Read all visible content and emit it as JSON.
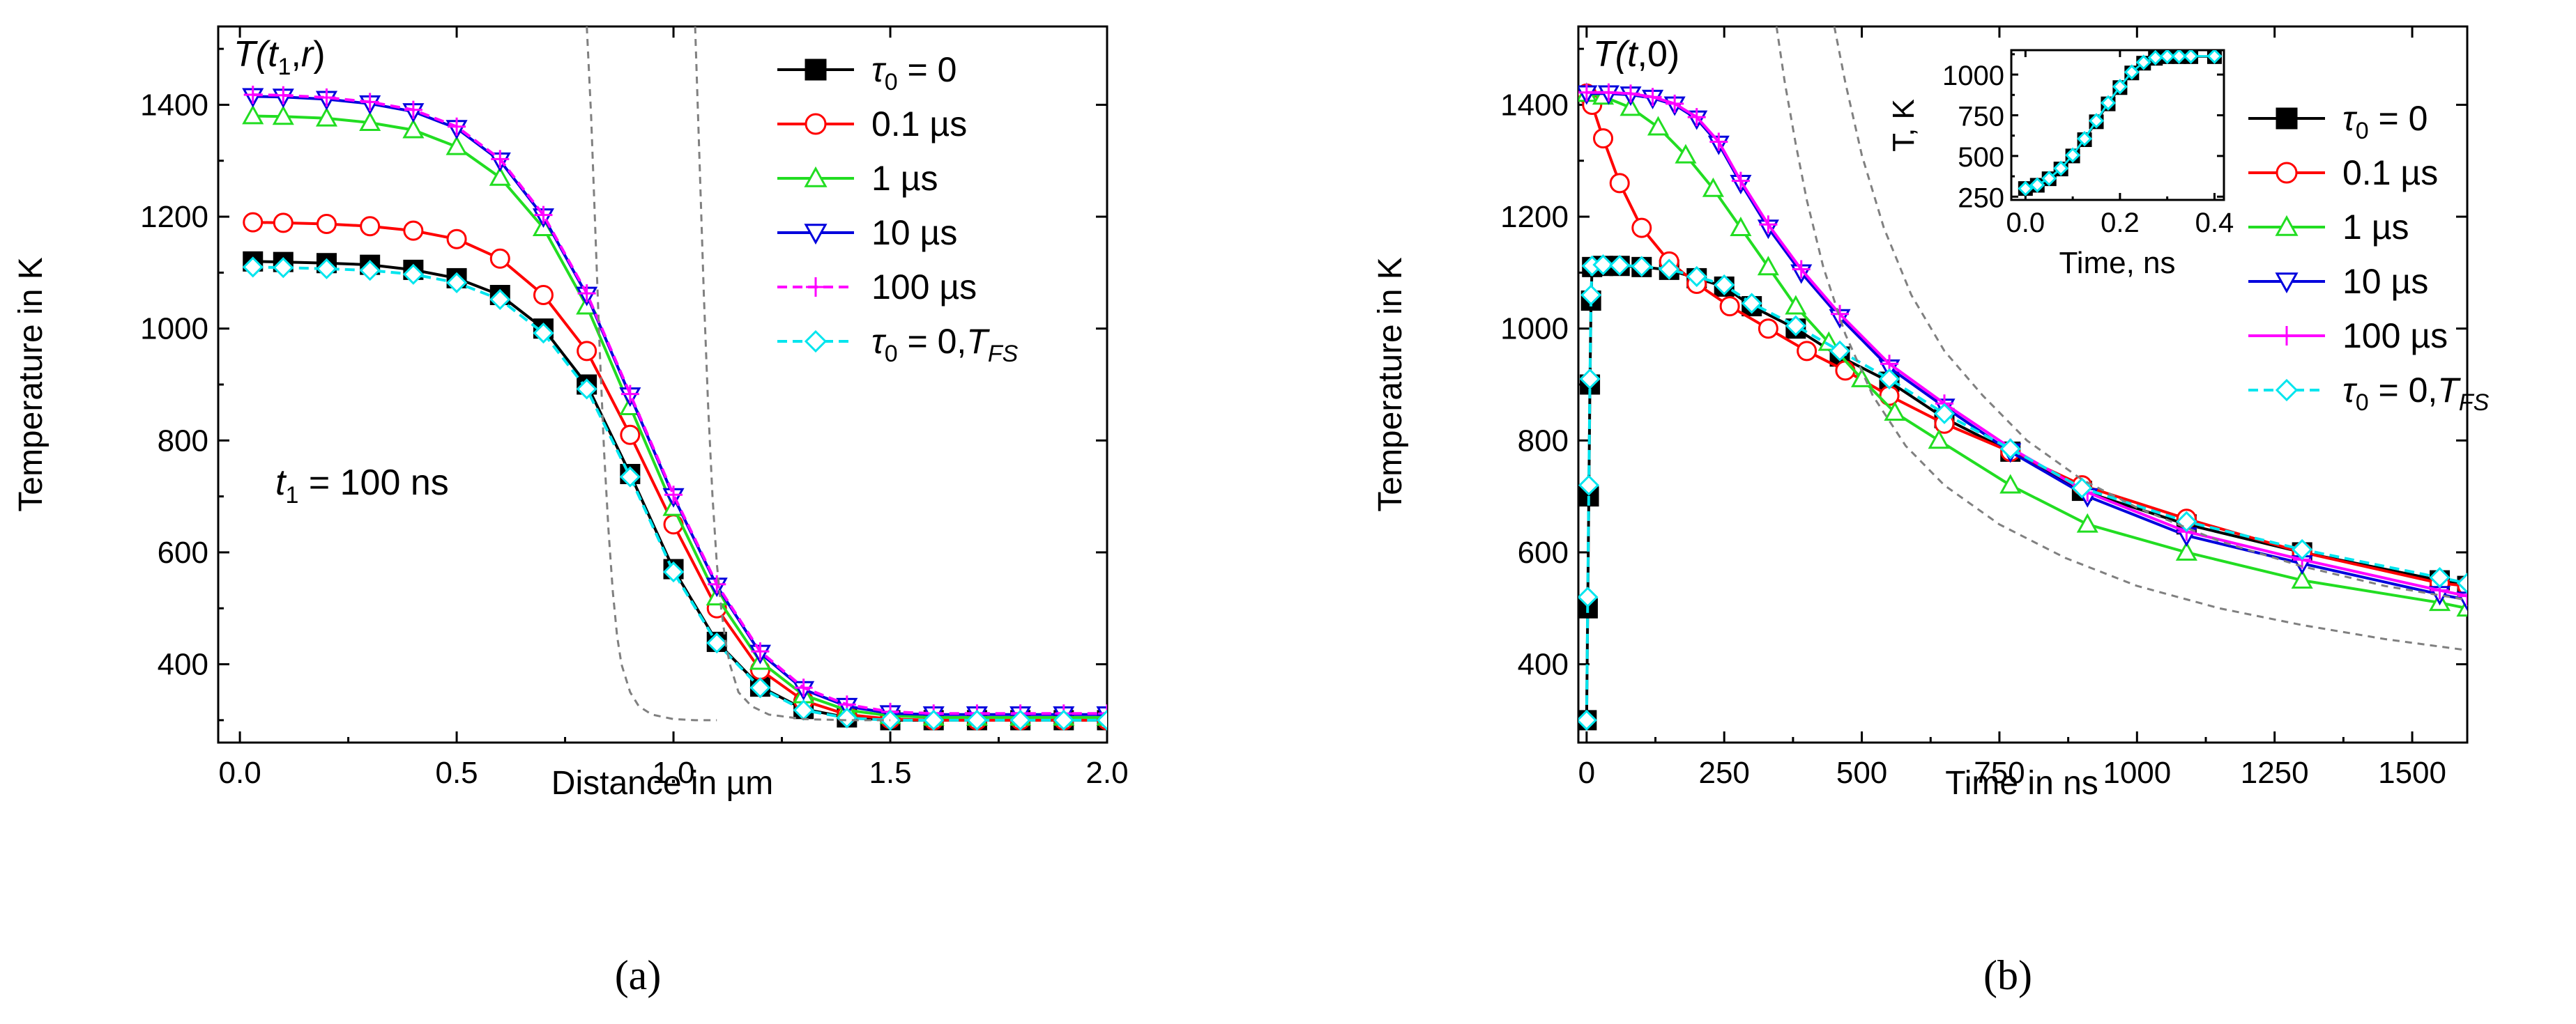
{
  "chart_data": [
    {
      "id": "a",
      "type": "line",
      "caption": "(a)",
      "annotation_title": "T(t1,r)",
      "annotation_t1": "t1 = 100 ns",
      "xlabel": "Distance in µm",
      "ylabel": "Temperature in K",
      "xlim": [
        -0.05,
        2.0
      ],
      "ylim": [
        260,
        1540
      ],
      "xticks": [
        "0.0",
        "0.5",
        "1.0",
        "1.5",
        "2.0"
      ],
      "yticks": [
        "400",
        "600",
        "800",
        "1000",
        "1200",
        "1400"
      ],
      "series": [
        {
          "name": "τ0 = 0",
          "color": "#000000",
          "marker": "square",
          "dash": "",
          "x": [
            0.03,
            0.1,
            0.2,
            0.3,
            0.4,
            0.5,
            0.6,
            0.7,
            0.8,
            0.9,
            1.0,
            1.1,
            1.2,
            1.3,
            1.4,
            1.5,
            1.6,
            1.7,
            1.8,
            1.9,
            2.0
          ],
          "y": [
            1120,
            1119,
            1117,
            1114,
            1105,
            1090,
            1060,
            1000,
            900,
            740,
            570,
            440,
            360,
            320,
            305,
            300,
            300,
            300,
            300,
            300,
            300
          ]
        },
        {
          "name": "0.1 µs",
          "color": "#ff0000",
          "marker": "circle",
          "dash": "",
          "x": [
            0.03,
            0.1,
            0.2,
            0.3,
            0.4,
            0.5,
            0.6,
            0.7,
            0.8,
            0.9,
            1.0,
            1.1,
            1.2,
            1.3,
            1.4,
            1.5,
            1.6,
            1.7,
            1.8,
            1.9,
            2.0
          ],
          "y": [
            1190,
            1189,
            1187,
            1183,
            1175,
            1160,
            1125,
            1060,
            960,
            810,
            650,
            500,
            390,
            335,
            310,
            302,
            300,
            300,
            300,
            300,
            300
          ]
        },
        {
          "name": "1 µs",
          "color": "#22dd22",
          "marker": "triangle-up",
          "dash": "",
          "x": [
            0.03,
            0.1,
            0.2,
            0.3,
            0.4,
            0.5,
            0.6,
            0.7,
            0.8,
            0.9,
            1.0,
            1.1,
            1.2,
            1.3,
            1.4,
            1.5,
            1.6,
            1.7,
            1.8,
            1.9,
            2.0
          ],
          "y": [
            1380,
            1379,
            1376,
            1368,
            1355,
            1325,
            1270,
            1180,
            1040,
            860,
            680,
            520,
            405,
            345,
            318,
            308,
            305,
            305,
            305,
            305,
            305
          ]
        },
        {
          "name": "10 µs",
          "color": "#0000dd",
          "marker": "triangle-down",
          "dash": "",
          "x": [
            0.03,
            0.1,
            0.2,
            0.3,
            0.4,
            0.5,
            0.6,
            0.7,
            0.8,
            0.9,
            1.0,
            1.1,
            1.2,
            1.3,
            1.4,
            1.5,
            1.6,
            1.7,
            1.8,
            1.9,
            2.0
          ],
          "y": [
            1415,
            1414,
            1410,
            1402,
            1388,
            1358,
            1300,
            1200,
            1060,
            880,
            700,
            540,
            420,
            355,
            325,
            312,
            310,
            310,
            310,
            310,
            310
          ]
        },
        {
          "name": "100 µs",
          "color": "#ff00ff",
          "marker": "plus",
          "dash": "14,8",
          "x": [
            0.03,
            0.1,
            0.2,
            0.3,
            0.4,
            0.5,
            0.6,
            0.7,
            0.8,
            0.9,
            1.0,
            1.1,
            1.2,
            1.3,
            1.4,
            1.5,
            1.6,
            1.7,
            1.8,
            1.9,
            2.0
          ],
          "y": [
            1418,
            1417,
            1413,
            1405,
            1391,
            1361,
            1303,
            1203,
            1063,
            883,
            703,
            543,
            423,
            358,
            328,
            315,
            312,
            312,
            312,
            312,
            312
          ]
        },
        {
          "name": "τ0 = 0,TFS",
          "color": "#00e5ee",
          "marker": "diamond",
          "dash": "14,8",
          "x": [
            0.03,
            0.1,
            0.2,
            0.3,
            0.4,
            0.5,
            0.6,
            0.7,
            0.8,
            0.9,
            1.0,
            1.1,
            1.2,
            1.3,
            1.4,
            1.5,
            1.6,
            1.7,
            1.8,
            1.9,
            2.0
          ],
          "y": [
            1110,
            1109,
            1107,
            1104,
            1097,
            1082,
            1052,
            992,
            892,
            735,
            565,
            438,
            358,
            318,
            304,
            300,
            300,
            300,
            300,
            300,
            300
          ]
        },
        {
          "name": "",
          "color": "#808080",
          "marker": "none",
          "dash": "10,8",
          "x": [
            0.8,
            0.81,
            0.82,
            0.83,
            0.84,
            0.85,
            0.86,
            0.87,
            0.88,
            0.9,
            0.92,
            0.95,
            1.0,
            1.05,
            1.1
          ],
          "y": [
            1540,
            1380,
            1170,
            960,
            780,
            640,
            530,
            450,
            400,
            350,
            325,
            310,
            302,
            300,
            300
          ]
        },
        {
          "name": "",
          "color": "#808080",
          "marker": "none",
          "dash": "10,8",
          "x": [
            1.05,
            1.06,
            1.07,
            1.08,
            1.09,
            1.1,
            1.11,
            1.12,
            1.13,
            1.15,
            1.18,
            1.22,
            1.3,
            1.4,
            1.5
          ],
          "y": [
            1540,
            1300,
            1060,
            860,
            700,
            580,
            500,
            440,
            400,
            350,
            325,
            310,
            302,
            300,
            300
          ]
        }
      ],
      "legend": [
        {
          "label": "τ",
          "sub": "0",
          "rest": " = 0"
        },
        {
          "label": "0.1 µs"
        },
        {
          "label": "1 µs"
        },
        {
          "label": "10 µs"
        },
        {
          "label": "100 µs"
        },
        {
          "label": "τ",
          "sub": "0",
          "rest": " = 0,",
          "italic2": "T",
          "sub2": "FS"
        }
      ]
    },
    {
      "id": "b",
      "type": "line",
      "caption": "(b)",
      "annotation_title": "T(t,0)",
      "xlabel": "Time in ns",
      "ylabel": "Temperature in K",
      "xlim": [
        -15,
        1600
      ],
      "ylim": [
        260,
        1540
      ],
      "xticks": [
        "0",
        "250",
        "500",
        "750",
        "1000",
        "1250",
        "1500"
      ],
      "yticks": [
        "400",
        "600",
        "800",
        "1000",
        "1200",
        "1400"
      ],
      "series": [
        {
          "name": "τ0 = 0",
          "color": "#000000",
          "marker": "square",
          "dash": "",
          "x": [
            0,
            2,
            4,
            6,
            8,
            10,
            30,
            60,
            100,
            150,
            200,
            250,
            300,
            380,
            460,
            550,
            650,
            770,
            900,
            1090,
            1300,
            1550,
            1600
          ],
          "y": [
            300,
            500,
            700,
            900,
            1050,
            1110,
            1112,
            1112,
            1110,
            1105,
            1090,
            1075,
            1040,
            1000,
            950,
            905,
            840,
            780,
            710,
            650,
            600,
            550,
            540
          ]
        },
        {
          "name": "0.1 µs",
          "color": "#ff0000",
          "marker": "circle",
          "dash": "",
          "x": [
            0,
            10,
            30,
            60,
            100,
            150,
            200,
            260,
            330,
            400,
            470,
            550,
            650,
            770,
            900,
            1090,
            1300,
            1550,
            1600
          ],
          "y": [
            1420,
            1400,
            1340,
            1260,
            1180,
            1120,
            1080,
            1040,
            1000,
            960,
            925,
            880,
            830,
            780,
            720,
            660,
            600,
            545,
            540
          ]
        },
        {
          "name": "1 µs",
          "color": "#22dd22",
          "marker": "triangle-up",
          "dash": "",
          "x": [
            0,
            30,
            80,
            130,
            180,
            230,
            280,
            330,
            380,
            440,
            500,
            560,
            640,
            770,
            910,
            1090,
            1300,
            1550,
            1600
          ],
          "y": [
            1420,
            1415,
            1395,
            1360,
            1310,
            1250,
            1180,
            1110,
            1040,
            975,
            910,
            850,
            800,
            720,
            650,
            600,
            550,
            510,
            500
          ]
        },
        {
          "name": "10 µs",
          "color": "#0000dd",
          "marker": "triangle-down",
          "dash": "",
          "x": [
            0,
            40,
            80,
            120,
            160,
            200,
            240,
            280,
            330,
            390,
            460,
            550,
            650,
            770,
            910,
            1090,
            1300,
            1550,
            1600
          ],
          "y": [
            1420,
            1420,
            1418,
            1412,
            1400,
            1375,
            1330,
            1260,
            1180,
            1100,
            1020,
            930,
            860,
            780,
            700,
            630,
            580,
            525,
            515
          ]
        },
        {
          "name": "100 µs",
          "color": "#ff00ff",
          "marker": "plus",
          "dash": "",
          "x": [
            0,
            40,
            80,
            120,
            160,
            200,
            240,
            280,
            330,
            390,
            460,
            550,
            650,
            770,
            910,
            1090,
            1300,
            1550,
            1600
          ],
          "y": [
            1422,
            1422,
            1420,
            1414,
            1402,
            1378,
            1334,
            1264,
            1186,
            1106,
            1026,
            937,
            866,
            787,
            707,
            637,
            587,
            532,
            522
          ]
        },
        {
          "name": "τ0 = 0,TFS",
          "color": "#00e5ee",
          "marker": "diamond",
          "dash": "14,8",
          "x": [
            0,
            2,
            4,
            6,
            8,
            10,
            30,
            60,
            100,
            150,
            200,
            250,
            300,
            380,
            460,
            550,
            650,
            770,
            900,
            1090,
            1300,
            1550,
            1600
          ],
          "y": [
            300,
            520,
            720,
            910,
            1060,
            1112,
            1114,
            1113,
            1111,
            1106,
            1093,
            1078,
            1045,
            1005,
            960,
            910,
            848,
            785,
            715,
            655,
            605,
            555,
            545
          ]
        },
        {
          "name": "",
          "color": "#808080",
          "marker": "none",
          "dash": "10,8",
          "x": [
            345,
            360,
            380,
            400,
            430,
            470,
            520,
            580,
            650,
            750,
            870,
            1000,
            1150,
            1300,
            1450,
            1600
          ],
          "y": [
            1540,
            1440,
            1330,
            1230,
            1110,
            990,
            880,
            790,
            720,
            650,
            590,
            540,
            500,
            470,
            445,
            425
          ]
        },
        {
          "name": "",
          "color": "#808080",
          "marker": "none",
          "dash": "10,8",
          "x": [
            450,
            470,
            500,
            540,
            590,
            650,
            720,
            800,
            900,
            1000,
            1150,
            1300,
            1450,
            1600
          ],
          "y": [
            1540,
            1440,
            1310,
            1180,
            1060,
            960,
            880,
            800,
            730,
            680,
            620,
            575,
            540,
            515
          ]
        }
      ],
      "legend": [
        {
          "label": "τ",
          "sub": "0",
          "rest": " = 0"
        },
        {
          "label": "0.1 µs"
        },
        {
          "label": "1 µs"
        },
        {
          "label": "10 µs"
        },
        {
          "label": "100 µs"
        },
        {
          "label": "τ",
          "sub": "0",
          "rest": " = 0,",
          "italic2": "T",
          "sub2": "FS"
        }
      ],
      "inset": {
        "xlabel": "Time, ns",
        "ylabel": "T, K",
        "xlim": [
          -0.03,
          0.42
        ],
        "ylim": [
          230,
          1150
        ],
        "xticks": [
          "0.0",
          "0.2",
          "0.4"
        ],
        "yticks": [
          "250",
          "500",
          "750",
          "1000"
        ],
        "series": [
          {
            "name": "τ0 = 0",
            "color": "#000000",
            "marker": "square",
            "x": [
              0.0,
              0.025,
              0.05,
              0.075,
              0.1,
              0.125,
              0.15,
              0.175,
              0.2,
              0.225,
              0.25,
              0.275,
              0.3,
              0.325,
              0.35,
              0.4
            ],
            "y": [
              300,
              320,
              360,
              420,
              500,
              600,
              710,
              820,
              920,
              1010,
              1070,
              1100,
              1110,
              1110,
              1110,
              1110
            ]
          },
          {
            "name": "τ0 = 0,TFS",
            "color": "#00e5ee",
            "marker": "diamond",
            "x": [
              0.0,
              0.025,
              0.05,
              0.075,
              0.1,
              0.125,
              0.15,
              0.175,
              0.2,
              0.225,
              0.25,
              0.275,
              0.3,
              0.325,
              0.35,
              0.4
            ],
            "y": [
              300,
              322,
              362,
              424,
              505,
              606,
              716,
              826,
              926,
              1015,
              1075,
              1104,
              1112,
              1113,
              1113,
              1113
            ]
          }
        ]
      }
    }
  ]
}
